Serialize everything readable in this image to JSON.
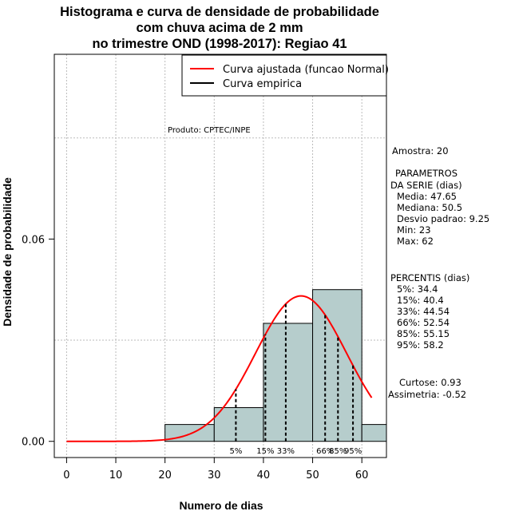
{
  "title_lines": [
    "Histograma e curva de densidade de probabilidade",
    "com chuva acima de 2 mm",
    "no trimestre OND (1998-2017): Regiao 41"
  ],
  "produto": "Produto: CPTEC/INPE",
  "colors": {
    "bar_fill": "#b6cdcc",
    "fitted_curve": "#ff0000",
    "empirical_curve": "#000000",
    "grid": "#bbbbbb"
  },
  "chart_data": {
    "type": "bar",
    "xlabel": "Numero de dias",
    "ylabel": "Densidade de probabilidade",
    "xlim": [
      -2.5,
      65
    ],
    "ylim": [
      -0.0048,
      0.1148
    ],
    "x_ticks": [
      0,
      10,
      20,
      30,
      40,
      50,
      60
    ],
    "y_ticks": [
      0.0,
      0.06
    ],
    "y_tick_labels": [
      "0.00",
      "0.06"
    ],
    "grid": true,
    "legend_position": "top-right",
    "legend": [
      {
        "label": "Curva ajustada (funcao Normal)",
        "color": "#ff0000"
      },
      {
        "label": "Curva empirica",
        "color": "#000000"
      }
    ],
    "bins": [
      {
        "x0": 20,
        "x1": 30,
        "density": 0.005
      },
      {
        "x0": 30,
        "x1": 40,
        "density": 0.01
      },
      {
        "x0": 40,
        "x1": 50,
        "density": 0.035
      },
      {
        "x0": 50,
        "x1": 60,
        "density": 0.045
      },
      {
        "x0": 60,
        "x1": 65,
        "density": 0.005
      }
    ],
    "normal_fit": {
      "mean": 47.65,
      "sd": 9.25,
      "x_from": 0,
      "x_to": 62
    },
    "percentile_lines": [
      {
        "label": "5%",
        "x": 34.4
      },
      {
        "label": "15%",
        "x": 40.4
      },
      {
        "label": "33%",
        "x": 44.54
      },
      {
        "label": "66%",
        "x": 52.54
      },
      {
        "label": "85%",
        "x": 55.15
      },
      {
        "label": "95%",
        "x": 58.2
      }
    ]
  },
  "side_panel": {
    "amostra": "Amostra: 20",
    "parametros_header": [
      "PARAMETROS",
      "DA SERIE (dias)"
    ],
    "parametros": [
      "Media: 47.65",
      "Mediana: 50.5",
      "Desvio padrao: 9.25",
      "Min: 23",
      "Max: 62"
    ],
    "percentis_header": "PERCENTIS (dias)",
    "percentis": [
      "5%: 34.4",
      "15%: 40.4",
      "33%: 44.54",
      "66%: 52.54",
      "85%: 55.15",
      "95%: 58.2"
    ],
    "curtose": "Curtose: 0.93",
    "assimetria": "Assimetria: -0.52"
  }
}
